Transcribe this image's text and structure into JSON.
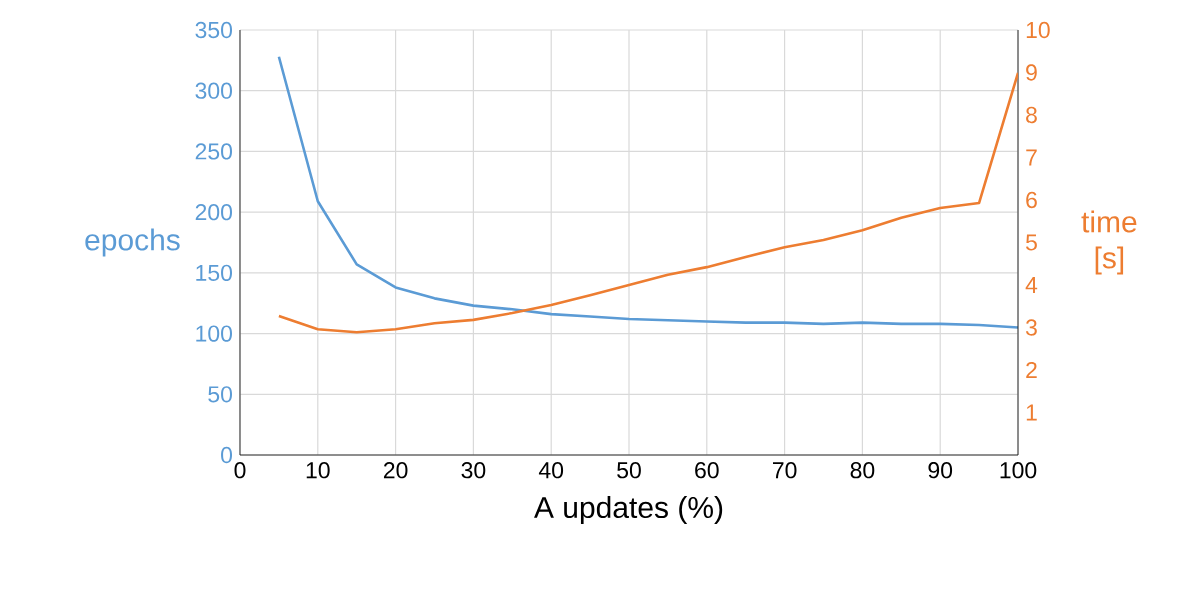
{
  "chart_data": {
    "type": "line",
    "xlabel": "A updates (%)",
    "ylabel": "epochs",
    "y2label": "time [s]",
    "x": [
      5,
      10,
      15,
      20,
      25,
      30,
      35,
      40,
      45,
      50,
      55,
      60,
      65,
      70,
      75,
      80,
      85,
      90,
      95,
      100
    ],
    "xlim": [
      0,
      100
    ],
    "xticks": [
      0,
      10,
      20,
      30,
      40,
      50,
      60,
      70,
      80,
      90,
      100
    ],
    "ylim": [
      0,
      350
    ],
    "yticks": [
      0,
      50,
      100,
      150,
      200,
      250,
      300,
      350
    ],
    "y2lim": [
      0,
      10
    ],
    "y2ticks": [
      1,
      2,
      3,
      4,
      5,
      6,
      7,
      8,
      9,
      10
    ],
    "grid": true,
    "series": [
      {
        "color": "#5b9bd5",
        "values": [
          328,
          209,
          157,
          138,
          129,
          123,
          120,
          116,
          114,
          112,
          111,
          110,
          109,
          109,
          108,
          109,
          108,
          108,
          107,
          105
        ]
      },
      {
        "color": "#ed7d31",
        "axis": "y2",
        "values": [
          3.27,
          2.96,
          2.89,
          2.96,
          3.1,
          3.18,
          3.34,
          3.53,
          3.76,
          4.0,
          4.24,
          4.42,
          4.66,
          4.89,
          5.06,
          5.29,
          5.58,
          5.81,
          5.93,
          8.99
        ]
      }
    ]
  }
}
